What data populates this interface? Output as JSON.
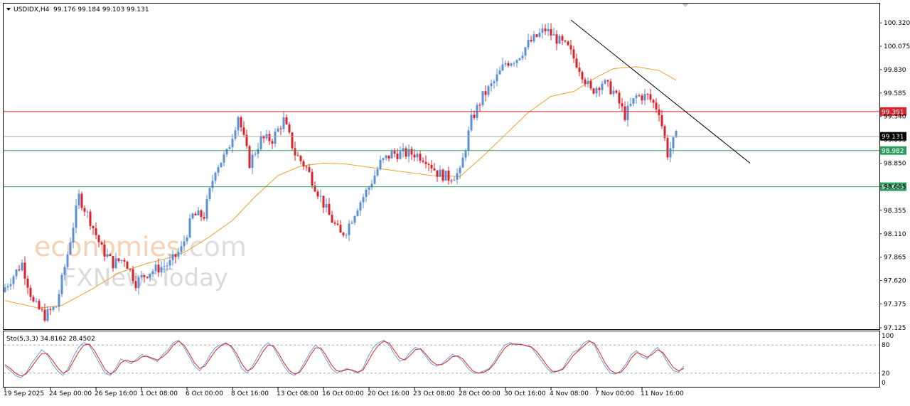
{
  "header": {
    "symbol": "USDIDX,H4",
    "ohlc": "99.176 99.184 99.103 99.131",
    "dropdown_icon": "triangle-down-icon"
  },
  "watermark": {
    "line1_a": "economies",
    "line1_b": ".com",
    "line2": "FXNewsToday"
  },
  "colors": {
    "bull": "#5b8fd6",
    "bear": "#d9222b",
    "ma": "#f0a030",
    "resistance": "#d9222b",
    "support": "#2e9e60",
    "price_line": "#aaaaaa",
    "trendline": "#000000",
    "stoch_main": "#6a9ed8",
    "stoch_signal": "#d9222b"
  },
  "chart_data": [
    {
      "type": "candlestick",
      "title": "USDIDX,H4",
      "ylim": [
        97.125,
        100.44
      ],
      "y_ticks": [
        "100.320",
        "100.075",
        "99.830",
        "99.585",
        "99.340",
        "99.095",
        "98.850",
        "98.605",
        "98.355",
        "98.110",
        "97.865",
        "97.620",
        "97.375",
        "97.125"
      ],
      "x_tick_labels": [
        "19 Sep 2025",
        "24 Sep 00:00",
        "26 Sep 16:00",
        "1 Oct 08:00",
        "6 Oct 00:00",
        "8 Oct 16:00",
        "13 Oct 08:00",
        "16 Oct 00:00",
        "20 Oct 16:00",
        "23 Oct 08:00",
        "28 Oct 00:00",
        "30 Oct 16:00",
        "4 Nov 08:00",
        "7 Nov 00:00",
        "11 Nov 16:00"
      ],
      "x_tick_index": [
        0,
        16,
        32,
        48,
        64,
        80,
        96,
        112,
        128,
        144,
        160,
        176,
        192,
        208,
        224
      ],
      "close_path": [
        [
          0,
          97.55
        ],
        [
          6,
          97.8
        ],
        [
          10,
          97.38
        ],
        [
          14,
          97.25
        ],
        [
          18,
          97.35
        ],
        [
          22,
          97.9
        ],
        [
          26,
          98.5
        ],
        [
          30,
          98.25
        ],
        [
          34,
          97.95
        ],
        [
          38,
          97.8
        ],
        [
          42,
          97.85
        ],
        [
          46,
          97.6
        ],
        [
          50,
          97.7
        ],
        [
          54,
          97.75
        ],
        [
          58,
          97.8
        ],
        [
          62,
          97.95
        ],
        [
          66,
          98.3
        ],
        [
          70,
          98.3
        ],
        [
          74,
          98.8
        ],
        [
          78,
          98.95
        ],
        [
          82,
          99.35
        ],
        [
          86,
          98.85
        ],
        [
          90,
          99.1
        ],
        [
          94,
          99.1
        ],
        [
          98,
          99.3
        ],
        [
          102,
          98.95
        ],
        [
          106,
          98.8
        ],
        [
          110,
          98.55
        ],
        [
          114,
          98.3
        ],
        [
          118,
          98.1
        ],
        [
          120,
          98.15
        ],
        [
          124,
          98.4
        ],
        [
          128,
          98.6
        ],
        [
          132,
          98.85
        ],
        [
          136,
          98.95
        ],
        [
          140,
          98.95
        ],
        [
          144,
          98.95
        ],
        [
          148,
          98.9
        ],
        [
          152,
          98.75
        ],
        [
          156,
          98.7
        ],
        [
          160,
          98.75
        ],
        [
          164,
          99.3
        ],
        [
          168,
          99.55
        ],
        [
          172,
          99.7
        ],
        [
          176,
          99.9
        ],
        [
          180,
          99.95
        ],
        [
          184,
          100.1
        ],
        [
          188,
          100.2
        ],
        [
          190,
          100.25
        ],
        [
          194,
          100.15
        ],
        [
          198,
          100.05
        ],
        [
          202,
          99.85
        ],
        [
          206,
          99.6
        ],
        [
          210,
          99.7
        ],
        [
          214,
          99.6
        ],
        [
          218,
          99.35
        ],
        [
          222,
          99.55
        ],
        [
          226,
          99.55
        ],
        [
          230,
          99.4
        ],
        [
          233,
          98.95
        ],
        [
          236,
          99.131
        ]
      ],
      "ma_path": [
        [
          0,
          97.41
        ],
        [
          12,
          97.33
        ],
        [
          20,
          97.36
        ],
        [
          30,
          97.52
        ],
        [
          40,
          97.7
        ],
        [
          50,
          97.8
        ],
        [
          58,
          97.86
        ],
        [
          64,
          97.93
        ],
        [
          72,
          98.08
        ],
        [
          80,
          98.25
        ],
        [
          88,
          98.5
        ],
        [
          96,
          98.72
        ],
        [
          104,
          98.82
        ],
        [
          112,
          98.85
        ],
        [
          120,
          98.84
        ],
        [
          130,
          98.8
        ],
        [
          140,
          98.76
        ],
        [
          150,
          98.72
        ],
        [
          160,
          98.71
        ],
        [
          168,
          98.92
        ],
        [
          176,
          99.15
        ],
        [
          184,
          99.38
        ],
        [
          192,
          99.55
        ],
        [
          200,
          99.6
        ],
        [
          208,
          99.75
        ],
        [
          214,
          99.84
        ],
        [
          222,
          99.86
        ],
        [
          230,
          99.82
        ],
        [
          236,
          99.72
        ]
      ],
      "levels": [
        {
          "label": "99.391",
          "value": 99.391,
          "kind": "resistance"
        },
        {
          "label": "98.982",
          "value": 98.982,
          "kind": "support"
        },
        {
          "label": "98.603",
          "value": 98.603,
          "kind": "support"
        }
      ],
      "current_price": {
        "label": "99.131",
        "value": 99.131
      },
      "trendline": {
        "from": [
          199,
          100.35
        ],
        "to": [
          262,
          98.85
        ]
      }
    },
    {
      "type": "line",
      "title": "Sto(5,3,3) 34.8162 28.4502",
      "indicator_label": "Sto(5,3,3) 34.8162 28.4502",
      "ylim": [
        0,
        100
      ],
      "y_ticks": [
        "100",
        "80",
        "20",
        "0"
      ],
      "levels": [
        80,
        20
      ],
      "series": [
        {
          "name": "main",
          "values": [
            35,
            25,
            15,
            10,
            20,
            40,
            55,
            70,
            60,
            40,
            25,
            15,
            30,
            55,
            75,
            85,
            80,
            60,
            40,
            20,
            15,
            30,
            50,
            45,
            40,
            50,
            60,
            55,
            50,
            45,
            60,
            70,
            85,
            90,
            75,
            55,
            35,
            25,
            40,
            60,
            75,
            80,
            85,
            75,
            55,
            30,
            20,
            35,
            55,
            75,
            85,
            75,
            55,
            35,
            20,
            15,
            25,
            45,
            65,
            80,
            70,
            50,
            30,
            20,
            25,
            30,
            25,
            20,
            30,
            55,
            75,
            85,
            90,
            80,
            60,
            45,
            50,
            65,
            75,
            70,
            55,
            40,
            35,
            40,
            50,
            60,
            55,
            45,
            30,
            20,
            20,
            25,
            30,
            45,
            65,
            80,
            85,
            80,
            82,
            78,
            75,
            60,
            45,
            30,
            20,
            25,
            30,
            50,
            65,
            70,
            85,
            90,
            80,
            55,
            35,
            20,
            18,
            25,
            40,
            60,
            68,
            55,
            50,
            65,
            75,
            60,
            40,
            25,
            22,
            35
          ]
        },
        {
          "name": "signal",
          "values": [
            38,
            30,
            20,
            14,
            18,
            32,
            48,
            62,
            62,
            48,
            32,
            20,
            25,
            45,
            65,
            80,
            82,
            68,
            48,
            28,
            18,
            25,
            42,
            48,
            44,
            46,
            55,
            56,
            52,
            48,
            55,
            65,
            80,
            88,
            80,
            62,
            42,
            30,
            35,
            52,
            68,
            78,
            83,
            78,
            62,
            40,
            25,
            30,
            46,
            66,
            80,
            78,
            62,
            42,
            26,
            18,
            22,
            38,
            58,
            74,
            74,
            58,
            38,
            25,
            24,
            28,
            27,
            22,
            26,
            45,
            65,
            80,
            88,
            84,
            68,
            52,
            48,
            58,
            70,
            72,
            60,
            46,
            38,
            38,
            45,
            55,
            57,
            50,
            36,
            24,
            20,
            22,
            28,
            40,
            58,
            74,
            82,
            82,
            81,
            79,
            76,
            66,
            52,
            36,
            24,
            24,
            28,
            42,
            58,
            68,
            78,
            88,
            84,
            64,
            42,
            26,
            20,
            22,
            34,
            52,
            64,
            60,
            54,
            60,
            70,
            64,
            48,
            32,
            25,
            30
          ]
        }
      ]
    }
  ]
}
